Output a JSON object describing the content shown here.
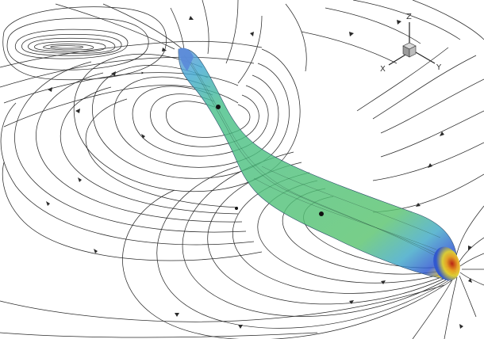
{
  "scene": {
    "background": "#ffffff",
    "streamline_color": "#2a2a2a",
    "body_gradient": [
      "#6a8fe0",
      "#3a9fd8",
      "#48c28c",
      "#5cc96a",
      "#3aa7c8",
      "#2d5cd4",
      "#e8c020",
      "#d02818"
    ]
  },
  "axis_triad": {
    "z_label": "Z",
    "x_label": "X",
    "y_label": "Y"
  },
  "icons": {
    "triad": "coordinate-triad-icon"
  }
}
